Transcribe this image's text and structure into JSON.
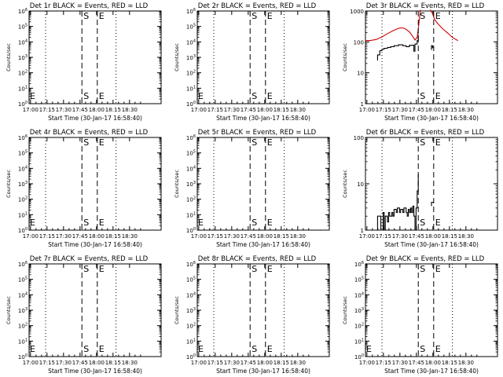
{
  "chart_data": [
    {
      "type": "line",
      "title": "Det 1r BLACK = Events, RED = LLD",
      "xlabel": "Start Time (30-Jan-17 16:58:40)",
      "ylabel": "Counts/sec",
      "xlim": [
        0,
        120
      ],
      "x_ticks": [
        "17:00",
        "17:15",
        "17:30",
        "17:45",
        "18:00",
        "18:15",
        "18:30"
      ],
      "ylim": [
        1,
        1000000
      ],
      "y_scale": "log",
      "y_ticks": [
        "10^0",
        "10^1",
        "10^2",
        "10^3",
        "10^4",
        "10^5",
        "10^6"
      ],
      "y_tick_style": "power",
      "event_markers": [
        {
          "label": "S",
          "x": 48
        },
        {
          "label": "E",
          "x": 62
        }
      ],
      "dotted_lines": [
        15,
        79
      ],
      "series": []
    },
    {
      "type": "line",
      "title": "Det 2r BLACK = Events, RED = LLD",
      "xlabel": "Start Time (30-Jan-17 16:58:40)",
      "ylabel": "Counts/sec",
      "xlim": [
        0,
        120
      ],
      "x_ticks": [
        "17:00",
        "17:15",
        "17:30",
        "17:45",
        "18:00",
        "18:15",
        "18:30"
      ],
      "ylim": [
        1,
        1000000
      ],
      "y_scale": "log",
      "y_ticks": [
        "10^0",
        "10^1",
        "10^2",
        "10^3",
        "10^4",
        "10^5",
        "10^6"
      ],
      "y_tick_style": "power",
      "event_markers": [
        {
          "label": "S",
          "x": 48
        },
        {
          "label": "E",
          "x": 62
        }
      ],
      "dotted_lines": [
        15,
        79
      ],
      "series": []
    },
    {
      "type": "line",
      "title": "Det 3r BLACK = Events, RED = LLD",
      "xlabel": "Start Time (30-Jan-17 16:58:40)",
      "ylabel": "Counts/sec",
      "xlim": [
        0,
        120
      ],
      "x_ticks": [
        "17:00",
        "17:15",
        "17:30",
        "17:45",
        "18:00",
        "18:15",
        "18:30"
      ],
      "ylim": [
        1,
        1000
      ],
      "y_scale": "log",
      "y_ticks": [
        "1",
        "10",
        "100",
        "1000"
      ],
      "y_tick_style": "plain",
      "event_markers": [
        {
          "label": "S",
          "x": 48
        },
        {
          "label": "E",
          "x": 62
        }
      ],
      "dotted_lines": [
        15,
        79
      ],
      "series": [
        {
          "color": "#000000",
          "points": [
            [
              11,
              25
            ],
            [
              11,
              38
            ],
            [
              13,
              38
            ],
            [
              13,
              52
            ],
            [
              15,
              52
            ],
            [
              15,
              58
            ],
            [
              17,
              58
            ],
            [
              17,
              62
            ],
            [
              20,
              62
            ],
            [
              20,
              66
            ],
            [
              23,
              66
            ],
            [
              23,
              70
            ],
            [
              26,
              70
            ],
            [
              26,
              75
            ],
            [
              30,
              75
            ],
            [
              30,
              80
            ],
            [
              34,
              80
            ],
            [
              34,
              75
            ],
            [
              37,
              75
            ],
            [
              37,
              70
            ],
            [
              40,
              70
            ],
            [
              40,
              78
            ],
            [
              44,
              78
            ],
            [
              44,
              50
            ],
            [
              45,
              50
            ],
            [
              45,
              85
            ],
            [
              47,
              85
            ],
            [
              47,
              110
            ],
            [
              48,
              110
            ],
            [
              48,
              170
            ]
          ]
        },
        {
          "color": "#d00000",
          "points": [
            [
              0,
              110
            ],
            [
              5,
              112
            ],
            [
              10,
              120
            ],
            [
              15,
              145
            ],
            [
              20,
              185
            ],
            [
              25,
              230
            ],
            [
              30,
              275
            ],
            [
              33,
              285
            ],
            [
              36,
              270
            ],
            [
              40,
              210
            ],
            [
              43,
              150
            ],
            [
              45,
              115
            ],
            [
              47,
              140
            ],
            [
              48,
              260
            ],
            [
              49,
              560
            ],
            [
              50,
              1100
            ]
          ]
        },
        {
          "color": "#d00000",
          "points": [
            [
              59,
              1100
            ],
            [
              61,
              820
            ],
            [
              63,
              520
            ],
            [
              66,
              380
            ],
            [
              70,
              270
            ],
            [
              75,
              190
            ],
            [
              79,
              140
            ],
            [
              83,
              115
            ],
            [
              84,
              110
            ]
          ]
        },
        {
          "color": "#000000",
          "points": [
            [
              60,
              55
            ],
            [
              60,
              75
            ],
            [
              61,
              75
            ],
            [
              61,
              65
            ],
            [
              62,
              65
            ]
          ]
        }
      ]
    },
    {
      "type": "line",
      "title": "Det 4r BLACK = Events, RED = LLD",
      "xlabel": "Start Time (30-Jan-17 16:58:40)",
      "ylabel": "Counts/sec",
      "xlim": [
        0,
        120
      ],
      "x_ticks": [
        "17:00",
        "17:15",
        "17:30",
        "17:45",
        "18:00",
        "18:15",
        "18:30"
      ],
      "ylim": [
        1,
        1000000
      ],
      "y_scale": "log",
      "y_ticks": [
        "10^0",
        "10^1",
        "10^2",
        "10^3",
        "10^4",
        "10^5",
        "10^6"
      ],
      "y_tick_style": "power",
      "event_markers": [
        {
          "label": "S",
          "x": 48
        },
        {
          "label": "E",
          "x": 62
        }
      ],
      "dotted_lines": [
        15,
        79
      ],
      "series": []
    },
    {
      "type": "line",
      "title": "Det 5r BLACK = Events, RED = LLD",
      "xlabel": "Start Time (30-Jan-17 16:58:40)",
      "ylabel": "Counts/sec",
      "xlim": [
        0,
        120
      ],
      "x_ticks": [
        "17:00",
        "17:15",
        "17:30",
        "17:45",
        "18:00",
        "18:15",
        "18:30"
      ],
      "ylim": [
        1,
        1000000
      ],
      "y_scale": "log",
      "y_ticks": [
        "10^0",
        "10^1",
        "10^2",
        "10^3",
        "10^4",
        "10^5",
        "10^6"
      ],
      "y_tick_style": "power",
      "event_markers": [
        {
          "label": "S",
          "x": 48
        },
        {
          "label": "E",
          "x": 62
        }
      ],
      "dotted_lines": [
        15,
        79
      ],
      "series": []
    },
    {
      "type": "line",
      "title": "Det 6r BLACK = Events, RED = LLD",
      "xlabel": "Start Time (30-Jan-17 16:58:40)",
      "ylabel": "Counts/sec",
      "xlim": [
        0,
        120
      ],
      "x_ticks": [
        "17:00",
        "17:15",
        "17:30",
        "17:45",
        "18:00",
        "18:15",
        "18:30"
      ],
      "ylim": [
        1,
        100
      ],
      "y_scale": "log",
      "y_ticks": [
        "1",
        "10",
        "100"
      ],
      "y_tick_style": "plain",
      "event_markers": [
        {
          "label": "S",
          "x": 48
        },
        {
          "label": "E",
          "x": 62
        }
      ],
      "dotted_lines": [
        15,
        79
      ],
      "series": [
        {
          "color": "#000000",
          "points": [
            [
              11,
              1
            ],
            [
              11,
              2
            ],
            [
              14,
              2
            ],
            [
              14,
              1
            ],
            [
              16,
              1
            ],
            [
              16,
              2.4
            ],
            [
              17,
              2.4
            ],
            [
              17,
              1
            ],
            [
              18,
              1
            ],
            [
              18,
              2
            ],
            [
              20,
              2
            ],
            [
              20,
              1.5
            ],
            [
              21,
              1.5
            ],
            [
              21,
              2.4
            ],
            [
              22,
              2.4
            ],
            [
              22,
              2
            ],
            [
              24,
              2
            ],
            [
              24,
              2.4
            ],
            [
              25,
              2.4
            ],
            [
              25,
              2
            ],
            [
              26,
              2
            ],
            [
              26,
              2.8
            ],
            [
              28,
              2.8
            ],
            [
              28,
              2.4
            ],
            [
              29,
              2.4
            ],
            [
              29,
              3
            ],
            [
              31,
              3
            ],
            [
              31,
              2.4
            ],
            [
              32,
              2.4
            ],
            [
              32,
              2.8
            ],
            [
              34,
              2.8
            ],
            [
              34,
              2.4
            ],
            [
              35,
              2.4
            ],
            [
              35,
              3
            ],
            [
              37,
              3
            ],
            [
              37,
              2.4
            ],
            [
              38,
              2.4
            ],
            [
              38,
              2
            ],
            [
              39,
              2
            ],
            [
              39,
              2.8
            ],
            [
              40,
              2.8
            ],
            [
              40,
              2.4
            ],
            [
              41,
              2.4
            ],
            [
              41,
              3
            ],
            [
              42,
              3
            ],
            [
              42,
              2.4
            ],
            [
              43,
              2.4
            ],
            [
              43,
              3.3
            ],
            [
              44,
              3.3
            ],
            [
              44,
              2
            ],
            [
              45,
              2
            ],
            [
              45,
              1
            ],
            [
              46,
              1
            ],
            [
              46,
              3
            ],
            [
              47,
              3
            ],
            [
              47,
              7
            ],
            [
              48,
              7
            ],
            [
              48,
              16
            ]
          ]
        },
        {
          "color": "#000000",
          "points": [
            [
              60,
              3.3
            ],
            [
              60,
              4
            ],
            [
              62,
              4
            ]
          ]
        }
      ]
    },
    {
      "type": "line",
      "title": "Det 7r BLACK = Events, RED = LLD",
      "xlabel": "Start Time (30-Jan-17 16:58:40)",
      "ylabel": "Counts/sec",
      "xlim": [
        0,
        120
      ],
      "x_ticks": [
        "17:00",
        "17:15",
        "17:30",
        "17:45",
        "18:00",
        "18:15",
        "18:30"
      ],
      "ylim": [
        1,
        1000000
      ],
      "y_scale": "log",
      "y_ticks": [
        "10^0",
        "10^1",
        "10^2",
        "10^3",
        "10^4",
        "10^5",
        "10^6"
      ],
      "y_tick_style": "power",
      "event_markers": [
        {
          "label": "S",
          "x": 48
        },
        {
          "label": "E",
          "x": 62
        }
      ],
      "dotted_lines": [
        15,
        79
      ],
      "series": []
    },
    {
      "type": "line",
      "title": "Det 8r BLACK = Events, RED = LLD",
      "xlabel": "Start Time (30-Jan-17 16:58:40)",
      "ylabel": "Counts/sec",
      "xlim": [
        0,
        120
      ],
      "x_ticks": [
        "17:00",
        "17:15",
        "17:30",
        "17:45",
        "18:00",
        "18:15",
        "18:30"
      ],
      "ylim": [
        1,
        1000000
      ],
      "y_scale": "log",
      "y_ticks": [
        "10^0",
        "10^1",
        "10^2",
        "10^3",
        "10^4",
        "10^5",
        "10^6"
      ],
      "y_tick_style": "power",
      "event_markers": [
        {
          "label": "S",
          "x": 48
        },
        {
          "label": "E",
          "x": 62
        }
      ],
      "dotted_lines": [
        15,
        79
      ],
      "series": []
    },
    {
      "type": "line",
      "title": "Det 9r BLACK = Events, RED = LLD",
      "xlabel": "Start Time (30-Jan-17 16:58:40)",
      "ylabel": "Counts/sec",
      "xlim": [
        0,
        120
      ],
      "x_ticks": [
        "17:00",
        "17:15",
        "17:30",
        "17:45",
        "18:00",
        "18:15",
        "18:30"
      ],
      "ylim": [
        1,
        1000000
      ],
      "y_scale": "log",
      "y_ticks": [
        "10^0",
        "10^1",
        "10^2",
        "10^3",
        "10^4",
        "10^5",
        "10^6"
      ],
      "y_tick_style": "power",
      "event_markers": [
        {
          "label": "S",
          "x": 48
        },
        {
          "label": "E",
          "x": 62
        }
      ],
      "dotted_lines": [
        15,
        79
      ],
      "series": []
    }
  ]
}
